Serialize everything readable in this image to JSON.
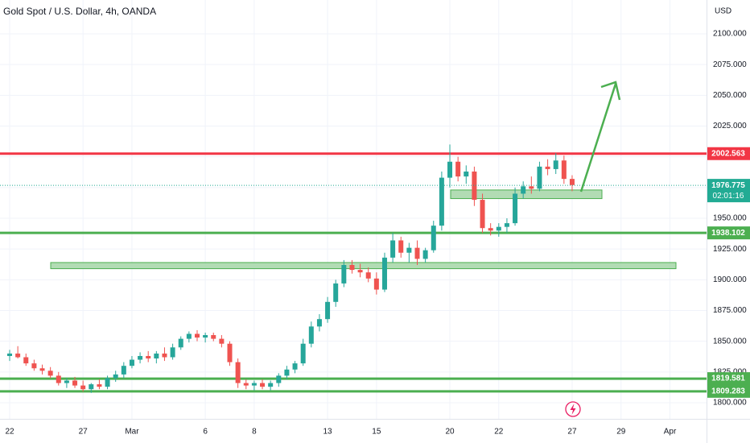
{
  "chart_data": {
    "type": "candlestick",
    "title": "Gold Spot / U.S. Dollar, 4h, OANDA",
    "currency": "USD",
    "categories": [
      "22",
      null,
      null,
      null,
      null,
      null,
      null,
      null,
      null,
      "27",
      null,
      null,
      null,
      null,
      null,
      "Mar",
      null,
      null,
      null,
      null,
      null,
      null,
      null,
      null,
      "6",
      null,
      null,
      null,
      null,
      null,
      "8",
      null,
      null,
      null,
      null,
      null,
      null,
      null,
      null,
      "13",
      null,
      null,
      null,
      null,
      null,
      "15",
      null,
      null,
      null,
      null,
      null,
      null,
      null,
      null,
      "20",
      null,
      null,
      null,
      null,
      null,
      "22",
      null,
      null,
      null,
      null,
      null,
      null,
      null,
      null,
      "27",
      null,
      null,
      null,
      null,
      null,
      "29",
      null,
      null,
      null,
      null,
      null,
      "Apr",
      null,
      null,
      null,
      null
    ],
    "open": [
      1838,
      1840,
      1837,
      1832,
      1828,
      1826,
      1822,
      1816,
      1818,
      1814,
      1811,
      1815,
      1813,
      1820,
      1823,
      1830,
      1835,
      1838,
      1836,
      1840,
      1837,
      1845,
      1852,
      1856,
      1853,
      1855,
      1852,
      1848,
      1833,
      1816,
      1814,
      1816,
      1813,
      1816,
      1822,
      1827,
      1832,
      1848,
      1862,
      1868,
      1882,
      1897,
      1912,
      1908,
      1906,
      1901,
      1892,
      1918,
      1932,
      1922,
      1926,
      1917,
      1924,
      1944,
      1983,
      1996,
      1984,
      1988,
      1965,
      1942,
      1940,
      1943,
      1946,
      1970,
      1976,
      1974,
      1992,
      1990,
      1997,
      1982,
      null,
      null,
      null,
      null,
      null,
      null,
      null,
      null,
      null,
      null,
      null,
      null,
      null,
      null,
      null,
      null
    ],
    "high": [
      1843,
      1846,
      1840,
      1835,
      1831,
      1829,
      1825,
      1820,
      1821,
      1818,
      1816,
      1819,
      1822,
      1826,
      1833,
      1838,
      1841,
      1842,
      1842,
      1845,
      1848,
      1854,
      1858,
      1859,
      1857,
      1857,
      1855,
      1850,
      1836,
      1819,
      1818,
      1819,
      1818,
      1824,
      1830,
      1834,
      1852,
      1866,
      1872,
      1886,
      1900,
      1916,
      1916,
      1913,
      1910,
      1906,
      1922,
      1938,
      1935,
      1930,
      1932,
      1926,
      1948,
      1988,
      2010,
      2000,
      1993,
      1992,
      1970,
      1946,
      1946,
      1950,
      1975,
      1980,
      1984,
      1996,
      1998,
      2003,
      2001,
      1985,
      null,
      null,
      null,
      null,
      null,
      null,
      null,
      null,
      null,
      null,
      null,
      null,
      null,
      null,
      null,
      null
    ],
    "low": [
      1834,
      1836,
      1830,
      1826,
      1823,
      1820,
      1814,
      1812,
      1812,
      1809,
      1808,
      1811,
      1811,
      1817,
      1820,
      1828,
      1832,
      1833,
      1832,
      1834,
      1835,
      1843,
      1849,
      1850,
      1849,
      1850,
      1845,
      1830,
      1812,
      1811,
      1810,
      1811,
      1810,
      1813,
      1819,
      1824,
      1830,
      1845,
      1858,
      1865,
      1878,
      1894,
      1905,
      1902,
      1898,
      1888,
      1890,
      1914,
      1918,
      1914,
      1912,
      1914,
      1922,
      1940,
      1975,
      1980,
      1978,
      1960,
      1938,
      1936,
      1935,
      1938,
      1944,
      1966,
      1970,
      1972,
      1985,
      1986,
      1978,
      1972,
      null,
      null,
      null,
      null,
      null,
      null,
      null,
      null,
      null,
      null,
      null,
      null,
      null,
      null,
      null,
      null
    ],
    "close": [
      1840,
      1837,
      1832,
      1828,
      1826,
      1822,
      1816,
      1818,
      1814,
      1811,
      1815,
      1813,
      1820,
      1823,
      1830,
      1835,
      1838,
      1836,
      1840,
      1837,
      1845,
      1852,
      1856,
      1853,
      1855,
      1852,
      1848,
      1833,
      1816,
      1814,
      1816,
      1813,
      1816,
      1822,
      1827,
      1832,
      1848,
      1862,
      1868,
      1882,
      1897,
      1912,
      1908,
      1906,
      1901,
      1892,
      1918,
      1932,
      1922,
      1926,
      1917,
      1924,
      1944,
      1983,
      1996,
      1984,
      1988,
      1965,
      1942,
      1940,
      1943,
      1946,
      1970,
      1976,
      1974,
      1992,
      1990,
      1997,
      1982,
      1977,
      null,
      null,
      null,
      null,
      null,
      null,
      null,
      null,
      null,
      null,
      null,
      null,
      null,
      null,
      null,
      null
    ],
    "up_color": "#26a69a",
    "down_color": "#ef5350",
    "ylim": [
      1786.9,
      2127.5
    ],
    "yticks": [
      {
        "value": 1800,
        "label": "1800.000"
      },
      {
        "value": 1825,
        "label": "1825.000"
      },
      {
        "value": 1850,
        "label": "1850.000"
      },
      {
        "value": 1875,
        "label": "1875.000"
      },
      {
        "value": 1900,
        "label": "1900.000"
      },
      {
        "value": 1925,
        "label": "1925.000"
      },
      {
        "value": 1950,
        "label": "1950.000"
      },
      {
        "value": 1975,
        "label": "1975.000"
      },
      {
        "value": 2000,
        "label": "2000.000"
      },
      {
        "value": 2025,
        "label": "2025.000"
      },
      {
        "value": 2050,
        "label": "2050.000"
      },
      {
        "value": 2075,
        "label": "2075.000"
      },
      {
        "value": 2100,
        "label": "2100.000"
      }
    ],
    "grid": true,
    "levels": [
      {
        "value": 2002.563,
        "color": "#f23645"
      },
      {
        "value": 1938.102,
        "color": "#4caf50"
      },
      {
        "value": 1819.581,
        "color": "#4caf50"
      },
      {
        "value": 1809.283,
        "color": "#4caf50"
      }
    ],
    "zones": [
      [
        1966,
        1973
      ],
      [
        1909,
        1914
      ]
    ],
    "zone_color": "#a5d6a7",
    "last_price": 1976.775,
    "last_price_color": "#22ab94",
    "countdown": "02:01:16"
  }
}
